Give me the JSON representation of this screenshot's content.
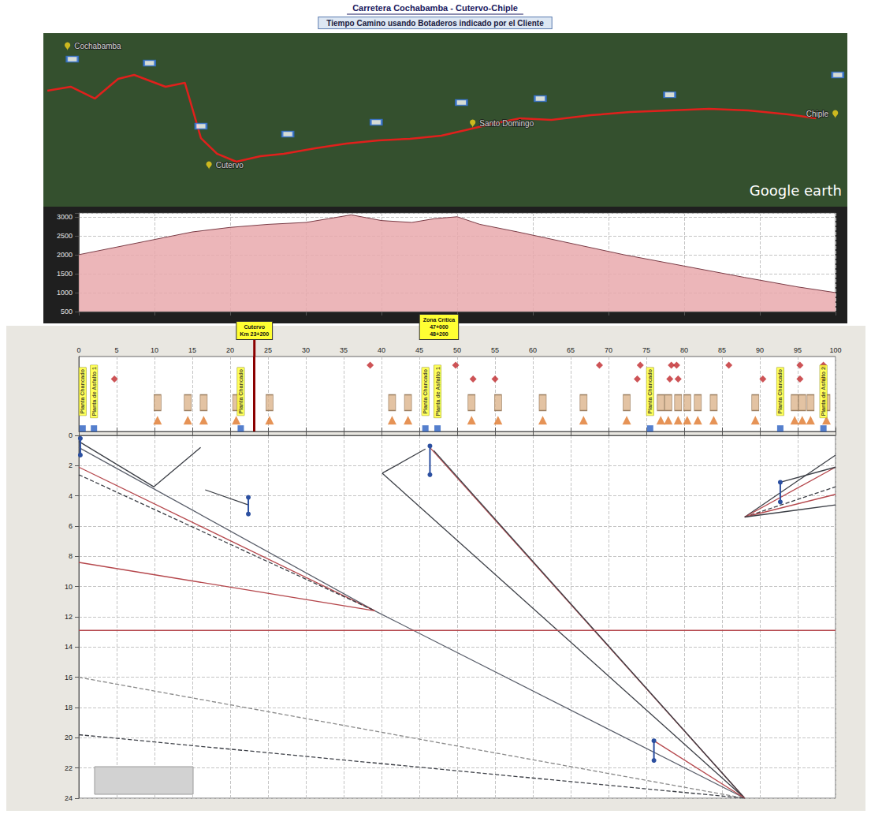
{
  "chart_data": [
    {
      "type": "map",
      "title": "Carretera Cochabamba - Cutervo-Chiple",
      "subtitle": "Tiempo Camino usando Botaderos indicado por el Cliente",
      "xlim": [
        0,
        100
      ],
      "ylim": [
        0,
        100
      ],
      "tick_labels": false,
      "grid": false,
      "route": {
        "color": "#e0201c",
        "x": [
          0.5,
          3.4,
          6.4,
          9.3,
          11.3,
          15.2,
          17.6,
          18.6,
          19.6,
          21.6,
          24.0,
          27.0,
          29.9,
          33.8,
          37.7,
          41.7,
          45.6,
          49.5,
          52.5,
          55.4,
          59.3,
          63.2,
          68.1,
          73.0,
          77.9,
          82.8,
          87.7,
          92.6,
          96.1
        ],
        "y": [
          66.8,
          69.1,
          62.3,
          73.6,
          75.9,
          69.1,
          71.4,
          55.5,
          39.5,
          30.5,
          25.9,
          29.1,
          30.5,
          33.6,
          36.4,
          38.2,
          39.1,
          40.9,
          44.1,
          47.3,
          50.9,
          50.0,
          52.7,
          54.5,
          55.5,
          56.4,
          55.5,
          53.2,
          50.9
        ]
      },
      "places": [
        {
          "label": "Cochabamba",
          "x": 3,
          "y": 90
        },
        {
          "label": "Cutervo",
          "x": 20.6,
          "y": 21.4
        },
        {
          "label": "Santo Domingo",
          "x": 53.4,
          "y": 45.5
        },
        {
          "label": "Chiple",
          "x": 98.5,
          "y": 50.9
        }
      ],
      "markers": {
        "color": "#2f6fd6",
        "x": [
          3.6,
          13.2,
          19.6,
          30.4,
          41.4,
          52.0,
          61.8,
          77.9,
          98.8
        ],
        "y": [
          85.0,
          82.7,
          46.4,
          41.8,
          48.6,
          60.0,
          62.3,
          64.5,
          75.9
        ]
      },
      "watermark": "Google earth"
    },
    {
      "type": "area",
      "color": "#e9a9ad",
      "xlim": [
        0,
        100
      ],
      "xticks": [
        0,
        10,
        20,
        30,
        40,
        50,
        60,
        70,
        80,
        90,
        100
      ],
      "ylim": [
        500,
        3100
      ],
      "yticks": [
        500,
        1000,
        1500,
        2000,
        2500,
        3000
      ],
      "tick_labels": "y",
      "grid": true,
      "x": [
        0,
        5,
        10,
        15,
        20,
        25,
        30,
        33,
        36,
        40,
        44,
        47,
        50,
        53,
        58,
        65,
        72,
        80,
        88,
        95,
        100
      ],
      "values": [
        2000,
        2200,
        2400,
        2600,
        2720,
        2800,
        2850,
        2950,
        3050,
        2900,
        2850,
        2950,
        3000,
        2800,
        2600,
        2300,
        2000,
        1700,
        1400,
        1150,
        1000
      ]
    },
    {
      "type": "scatter",
      "xlim": [
        0,
        100
      ],
      "xticks": [
        0,
        5,
        10,
        15,
        20,
        25,
        30,
        35,
        40,
        45,
        50,
        55,
        60,
        65,
        70,
        75,
        80,
        85,
        90,
        95,
        100
      ],
      "ylim": [
        0,
        3
      ],
      "tick_labels": "x",
      "grid": true,
      "sources": {
        "marker": "triangle",
        "color": "#e0782c",
        "x": [
          10.4,
          14.4,
          16.5,
          20.8,
          25.2,
          41.4,
          43.5,
          51.9,
          55.4,
          61.3,
          66.7,
          72.4,
          76.9,
          77.9,
          79.2,
          80.4,
          81.8,
          83.9,
          89.4,
          94.6,
          95.6,
          96.7,
          98.8
        ]
      },
      "points": {
        "marker": "diamond",
        "color": "#c0282c",
        "x": [
          38.5,
          49.8,
          68.8,
          74.2,
          78.3,
          79.0,
          85.9,
          95.3,
          98.4,
          4.7,
          52.1,
          55.0,
          73.8,
          78.1,
          79.2,
          90.4,
          95.3,
          98.4
        ],
        "row": [
          2,
          2,
          2,
          2,
          2,
          2,
          2,
          2,
          2,
          1,
          1,
          1,
          1,
          1,
          1,
          1,
          1,
          1
        ]
      },
      "plants": {
        "color": "#ffff33",
        "x": [
          0.5,
          2.0,
          21.4,
          45.8,
          47.4,
          75.5,
          92.7,
          98.4
        ],
        "labels": [
          "Planta Chancado",
          "Planta de Asfalto 1",
          "Planta Chancado",
          "Planta Chancado",
          "Planta de Asfalto 1",
          "Planta Chancado",
          "Planta Chancado",
          "Planta de Asfalto 2"
        ]
      },
      "annotations": [
        {
          "label": "Cutervo",
          "chainage": [
            "Km 23+200"
          ],
          "x": [
            23.2
          ]
        },
        {
          "label": "Zona Crítica",
          "chainage": [
            "47+000",
            "48+200"
          ],
          "x": [
            47,
            48.2
          ]
        }
      ]
    },
    {
      "type": "line",
      "xlim": [
        0,
        100
      ],
      "xticks": [
        0,
        5,
        10,
        15,
        20,
        25,
        30,
        35,
        40,
        45,
        50,
        55,
        60,
        65,
        70,
        75,
        80,
        85,
        90,
        95,
        100
      ],
      "ylim": [
        0,
        24
      ],
      "yticks": [
        0,
        2,
        4,
        6,
        8,
        10,
        12,
        14,
        16,
        18,
        20,
        22,
        24
      ],
      "tick_labels": "y",
      "grid": true,
      "series": [
        {
          "color": "#5a5f6b",
          "line_style": "solid",
          "x": [
            0,
            39.1,
            88
          ],
          "values": [
            0.8,
            11.6,
            24
          ]
        },
        {
          "color": "#b5474c",
          "line_style": "solid",
          "x": [
            0,
            39.1
          ],
          "values": [
            2.1,
            11.6
          ]
        },
        {
          "color": "#3c3f46",
          "line_style": "dashed",
          "x": [
            0,
            39.1
          ],
          "values": [
            2.6,
            11.6
          ]
        },
        {
          "color": "#b5474c",
          "line_style": "solid",
          "x": [
            0,
            39.1
          ],
          "values": [
            8.4,
            11.6
          ]
        },
        {
          "color": "#3c3f46",
          "line_style": "solid",
          "x": [
            0,
            9.9,
            16.1
          ],
          "values": [
            0.4,
            3.4,
            0.8
          ]
        },
        {
          "color": "#3c3f46",
          "line_style": "solid",
          "x": [
            16.7,
            22.4
          ],
          "values": [
            3.6,
            4.6
          ]
        },
        {
          "color": "#3c3f46",
          "line_style": "solid",
          "x": [
            40.1,
            88
          ],
          "values": [
            2.5,
            24
          ]
        },
        {
          "color": "#3c3f46",
          "line_style": "solid",
          "x": [
            40.1,
            45.8
          ],
          "values": [
            2.5,
            0.9
          ]
        },
        {
          "color": "#b5474c",
          "line_style": "solid",
          "x": [
            46.4,
            88
          ],
          "values": [
            0.8,
            24
          ]
        },
        {
          "color": "#3c3f46",
          "line_style": "solid",
          "x": [
            46.9,
            88
          ],
          "values": [
            1.0,
            24
          ]
        },
        {
          "color": "#b5474c",
          "line_style": "solid",
          "x": [
            76,
            88
          ],
          "values": [
            20.2,
            24
          ]
        },
        {
          "color": "#3c3f46",
          "line_style": "solid",
          "x": [
            88,
            100
          ],
          "values": [
            5.4,
            1.3
          ]
        },
        {
          "color": "#b5474c",
          "line_style": "solid",
          "x": [
            88,
            100
          ],
          "values": [
            5.4,
            2.1
          ]
        },
        {
          "color": "#3c3f46",
          "line_style": "dashed",
          "x": [
            88,
            100
          ],
          "values": [
            5.4,
            3.4
          ]
        },
        {
          "color": "#b5474c",
          "line_style": "solid",
          "x": [
            88,
            100
          ],
          "values": [
            5.4,
            3.9
          ]
        },
        {
          "color": "#3c3f46",
          "line_style": "solid",
          "x": [
            88,
            100
          ],
          "values": [
            5.4,
            4.6
          ]
        },
        {
          "color": "#3c3f46",
          "line_style": "solid",
          "x": [
            92.7,
            100
          ],
          "values": [
            3.1,
            2.1
          ]
        },
        {
          "color": "#b5474c",
          "line_style": "solid",
          "x": [
            0,
            100
          ],
          "values": [
            12.9,
            12.9
          ]
        },
        {
          "color": "#8a8a8a",
          "line_style": "dashed",
          "x": [
            0,
            88
          ],
          "values": [
            16.0,
            24
          ]
        },
        {
          "color": "#3c3f46",
          "line_style": "dashed",
          "x": [
            0,
            88
          ],
          "values": [
            19.8,
            24
          ]
        },
        {
          "color": "#2b4fa0",
          "line_style": "solid",
          "marker": "circle",
          "x": [
            0.2,
            0.2
          ],
          "values": [
            0.2,
            1.3
          ]
        },
        {
          "color": "#2b4fa0",
          "line_style": "solid",
          "marker": "circle",
          "x": [
            22.4,
            22.4
          ],
          "values": [
            4.1,
            5.2
          ]
        },
        {
          "color": "#2b4fa0",
          "line_style": "solid",
          "marker": "circle",
          "x": [
            46.4,
            46.4
          ],
          "values": [
            0.7,
            2.6
          ]
        },
        {
          "color": "#2b4fa0",
          "line_style": "solid",
          "marker": "circle",
          "x": [
            76,
            76
          ],
          "values": [
            20.2,
            21.5
          ]
        },
        {
          "color": "#2b4fa0",
          "line_style": "solid",
          "marker": "circle",
          "x": [
            92.7,
            92.7
          ],
          "values": [
            3.1,
            4.4
          ]
        }
      ]
    }
  ]
}
